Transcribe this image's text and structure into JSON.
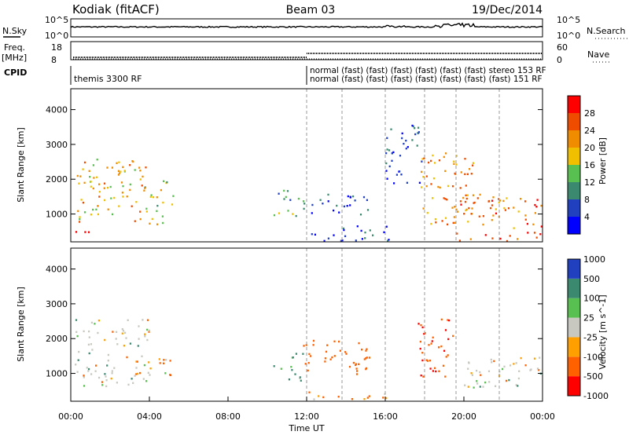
{
  "header": {
    "station": "Kodiak (fitACF)",
    "beam": "Beam 03",
    "date": "19/Dec/2014"
  },
  "summary": {
    "nsky_label": "N.Sky",
    "nsky_ticks": [
      "10^5",
      "10^0"
    ],
    "nsearch_label": "N.Search",
    "nsearch_ticks": [
      "10^5",
      "10^0"
    ],
    "freq_label": "Freq.",
    "freq_unit": "[MHz]",
    "freq_ticks": [
      "18",
      "8"
    ],
    "nave_label": "Nave",
    "nave_ticks": [
      "60",
      "0"
    ],
    "cpid_label": "CPID",
    "cpid_main": "themis 3300 RF",
    "cpid_seg_top": "normal (fast) (fast) (fast) (fast) (fast) (fast) stereo 153 RF",
    "cpid_seg_bottom": "normal (fast) (fast) (fast) (fast) (fast) (fast) (fast) 151 RF"
  },
  "colors": {
    "power": [
      "#0000ff",
      "#2040c0",
      "#3b8a70",
      "#58c050",
      "#f0c000",
      "#f08c00",
      "#f04c00",
      "#ff0000"
    ],
    "velocity": [
      "#ff0000",
      "#ff6000",
      "#ffa000",
      "#c8c8c0",
      "#58c050",
      "#3b8a70",
      "#2040c0"
    ],
    "ground_scatter": "#c8c8c0"
  },
  "chart_data": [
    {
      "type": "heatmap",
      "panel": "power",
      "ylabel": "Slant Range [km]",
      "yticks": [
        "1000",
        "2000",
        "3000",
        "4000"
      ],
      "ylim": [
        200,
        4600
      ],
      "xlim": [
        "00:00",
        "24:00"
      ],
      "colorbar_label": "Power [dB]",
      "colorbar_ticks": [
        "4",
        "8",
        "12",
        "16",
        "20",
        "24",
        "28"
      ],
      "colorbar_range": [
        0,
        32
      ],
      "grid": "dashed vertical lines at segment boundaries",
      "regions": [
        {
          "t0": 0.2,
          "t1": 4.0,
          "r0": 800,
          "r1": 2600,
          "level": 20
        },
        {
          "t0": 0.2,
          "t1": 1.0,
          "r0": 300,
          "r1": 600,
          "level": 28
        },
        {
          "t0": 3.7,
          "t1": 5.2,
          "r0": 700,
          "r1": 2000,
          "level": 16
        },
        {
          "t0": 10.3,
          "t1": 11.8,
          "r0": 900,
          "r1": 1700,
          "level": 12
        },
        {
          "t0": 11.8,
          "t1": 15.3,
          "r0": 1000,
          "r1": 1600,
          "level": 6
        },
        {
          "t0": 12.0,
          "t1": 16.4,
          "r0": 250,
          "r1": 700,
          "level": 6
        },
        {
          "t0": 16.0,
          "t1": 18.0,
          "r0": 1900,
          "r1": 3600,
          "level": 6
        },
        {
          "t0": 17.8,
          "t1": 20.5,
          "r0": 700,
          "r1": 2800,
          "level": 22
        },
        {
          "t0": 19.5,
          "t1": 24.0,
          "r0": 600,
          "r1": 1600,
          "level": 24
        },
        {
          "t0": 19.5,
          "t1": 24.0,
          "r0": 250,
          "r1": 500,
          "level": 28
        }
      ]
    },
    {
      "type": "heatmap",
      "panel": "velocity",
      "ylabel": "Slant Range [km]",
      "yticks": [
        "1000",
        "2000",
        "3000",
        "4000"
      ],
      "ylim": [
        200,
        4600
      ],
      "xlim": [
        "00:00",
        "24:00"
      ],
      "xticks": [
        "00:00",
        "04:00",
        "08:00",
        "12:00",
        "16:00",
        "20:00",
        "00:00"
      ],
      "xlabel": "Time UT",
      "colorbar_label": "Velocity [m s^-1]",
      "colorbar_ticks": [
        "-1000",
        "-500",
        "-100",
        "-25",
        "25",
        "100",
        "500",
        "1000"
      ],
      "colorbar_range": [
        -1000,
        1000
      ],
      "regions": [
        {
          "t0": 0.2,
          "t1": 4.0,
          "r0": 600,
          "r1": 2600,
          "vel": 0
        },
        {
          "t0": 3.7,
          "t1": 5.2,
          "r0": 900,
          "r1": 1500,
          "vel": -150
        },
        {
          "t0": 10.3,
          "t1": 11.8,
          "r0": 800,
          "r1": 1600,
          "vel": 200
        },
        {
          "t0": 11.8,
          "t1": 15.3,
          "r0": 1000,
          "r1": 2000,
          "vel": -300
        },
        {
          "t0": 12.0,
          "t1": 16.4,
          "r0": 250,
          "r1": 500,
          "vel": -150
        },
        {
          "t0": 17.6,
          "t1": 19.5,
          "r0": 900,
          "r1": 2600,
          "vel": -400
        },
        {
          "t0": 19.5,
          "t1": 24.0,
          "r0": 600,
          "r1": 1500,
          "vel": 0
        }
      ]
    }
  ]
}
